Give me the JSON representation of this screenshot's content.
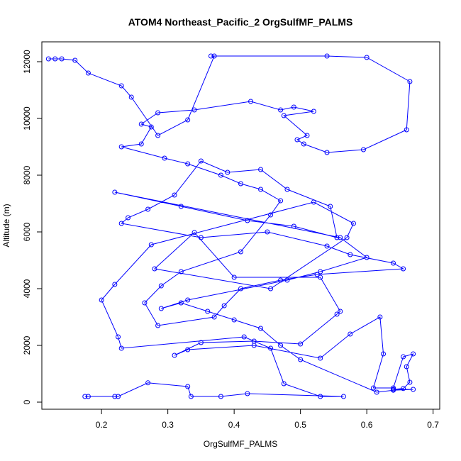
{
  "chart_data": {
    "type": "line",
    "title": "ATOM4 Northeast_Pacific_2 OrgSulfMF_PALMS",
    "xlabel": "OrgSulfMF_PALMS",
    "ylabel": "Altitude (m)",
    "xlim": [
      0.11,
      0.71
    ],
    "ylim": [
      -250,
      12700
    ],
    "x_ticks": [
      0.2,
      0.3,
      0.4,
      0.5,
      0.6,
      0.7
    ],
    "x_tick_labels": [
      "0.2",
      "0.3",
      "0.4",
      "0.5",
      "0.6",
      "0.7"
    ],
    "y_ticks": [
      0,
      2000,
      4000,
      6000,
      8000,
      10000,
      12000
    ],
    "y_tick_labels": [
      "0",
      "2000",
      "4000",
      "6000",
      "8000",
      "10000",
      "12000"
    ],
    "grid": false,
    "legend": "none",
    "color": "#0000ff",
    "series": [
      {
        "x": [
          0.18,
          0.175,
          0.22,
          0.225,
          0.27,
          0.33,
          0.335,
          0.38,
          0.42,
          0.565,
          0.53,
          0.475,
          0.455,
          0.415,
          0.23,
          0.225,
          0.2,
          0.22,
          0.275,
          0.52,
          0.58,
          0.57,
          0.455,
          0.28,
          0.34,
          0.4,
          0.53,
          0.56,
          0.555,
          0.5,
          0.43,
          0.35,
          0.31,
          0.33,
          0.43,
          0.53,
          0.575,
          0.62,
          0.625,
          0.61,
          0.64,
          0.655,
          0.67,
          0.66,
          0.665,
          0.655,
          0.64,
          0.67,
          0.64,
          0.615,
          0.5,
          0.47,
          0.44,
          0.4,
          0.36,
          0.32,
          0.29,
          0.33,
          0.48,
          0.53,
          0.6,
          0.56,
          0.22,
          0.32,
          0.42,
          0.49,
          0.555,
          0.545,
          0.48,
          0.44,
          0.39,
          0.35,
          0.31,
          0.27,
          0.24,
          0.23,
          0.35,
          0.45,
          0.54,
          0.575,
          0.64,
          0.655,
          0.525,
          0.47,
          0.41,
          0.385,
          0.37,
          0.285,
          0.265,
          0.29,
          0.32,
          0.41,
          0.455,
          0.47,
          0.44,
          0.41,
          0.38,
          0.33,
          0.295,
          0.23,
          0.26,
          0.275,
          0.26,
          0.285,
          0.34,
          0.425,
          0.47,
          0.49,
          0.52,
          0.475,
          0.51,
          0.495,
          0.505,
          0.54,
          0.595,
          0.66,
          0.665,
          0.6,
          0.54,
          0.365,
          0.37,
          0.33,
          0.285,
          0.245,
          0.23,
          0.18,
          0.16,
          0.14,
          0.13,
          0.12
        ],
        "y": [
          200,
          200,
          200,
          200,
          680,
          550,
          200,
          200,
          300,
          200,
          200,
          650,
          1900,
          2300,
          1900,
          2300,
          3600,
          4150,
          5550,
          7050,
          6300,
          5800,
          4000,
          4700,
          5980,
          4400,
          4400,
          3200,
          3100,
          2050,
          2150,
          2100,
          1650,
          1850,
          2000,
          1550,
          2400,
          3000,
          1700,
          500,
          500,
          1600,
          1700,
          1250,
          700,
          480,
          450,
          450,
          420,
          350,
          1500,
          2000,
          2600,
          2900,
          3200,
          3500,
          3300,
          3600,
          4300,
          4600,
          5100,
          5800,
          7400,
          6900,
          6400,
          6200,
          5800,
          6900,
          7500,
          8200,
          8100,
          8500,
          7300,
          6800,
          6500,
          6300,
          5800,
          6000,
          5500,
          5200,
          4900,
          4700,
          4500,
          4300,
          4000,
          3400,
          3000,
          2700,
          3500,
          4100,
          4600,
          5300,
          6600,
          7100,
          7500,
          7700,
          8000,
          8400,
          8600,
          9000,
          9100,
          9700,
          9800,
          10200,
          10300,
          10600,
          10300,
          10400,
          10250,
          10100,
          9400,
          9250,
          9100,
          8800,
          8900,
          9600,
          11300,
          12150,
          12200,
          12200,
          12200,
          9950,
          9400,
          10750,
          11150,
          11600,
          12050,
          12100,
          12100,
          12100
        ]
      }
    ]
  }
}
